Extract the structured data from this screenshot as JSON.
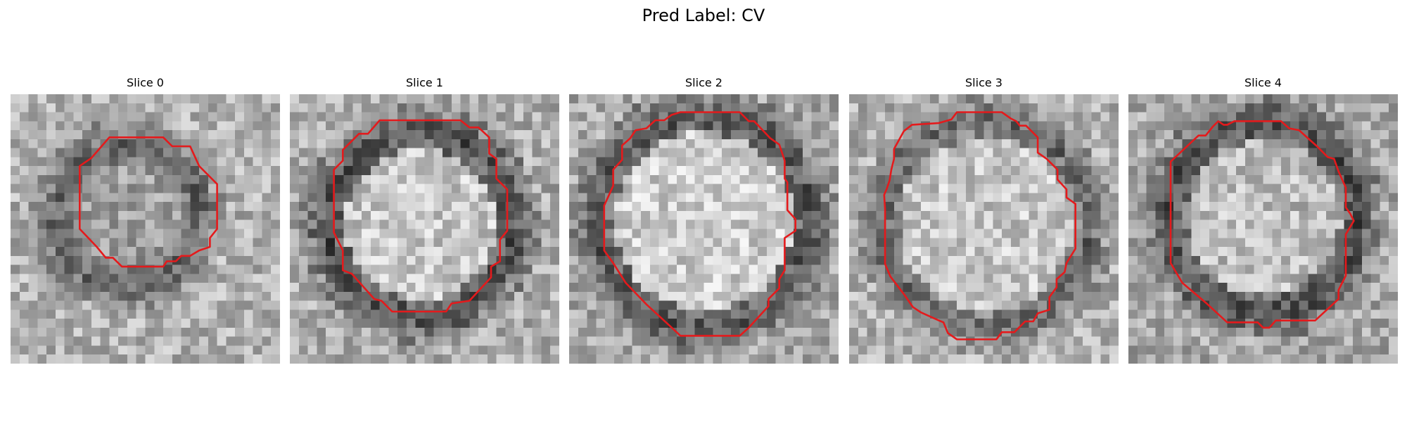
{
  "figure": {
    "title": "Pred Label: CV"
  },
  "slices": [
    {
      "title": "Slice 0",
      "ring_brightness": 0.38,
      "interior_brightness": 0.62,
      "background_brightness": 0.7
    },
    {
      "title": "Slice 1",
      "ring_brightness": 0.3,
      "interior_brightness": 0.78,
      "background_brightness": 0.68
    },
    {
      "title": "Slice 2",
      "ring_brightness": 0.32,
      "interior_brightness": 0.8,
      "background_brightness": 0.66
    },
    {
      "title": "Slice 3",
      "ring_brightness": 0.4,
      "interior_brightness": 0.78,
      "background_brightness": 0.7
    },
    {
      "title": "Slice 4",
      "ring_brightness": 0.3,
      "interior_brightness": 0.74,
      "background_brightness": 0.66
    }
  ],
  "colors": {
    "contour": "#e41a1c"
  },
  "image_style": {
    "colormap": "gray",
    "grid_cells": 30,
    "axes": "off"
  }
}
